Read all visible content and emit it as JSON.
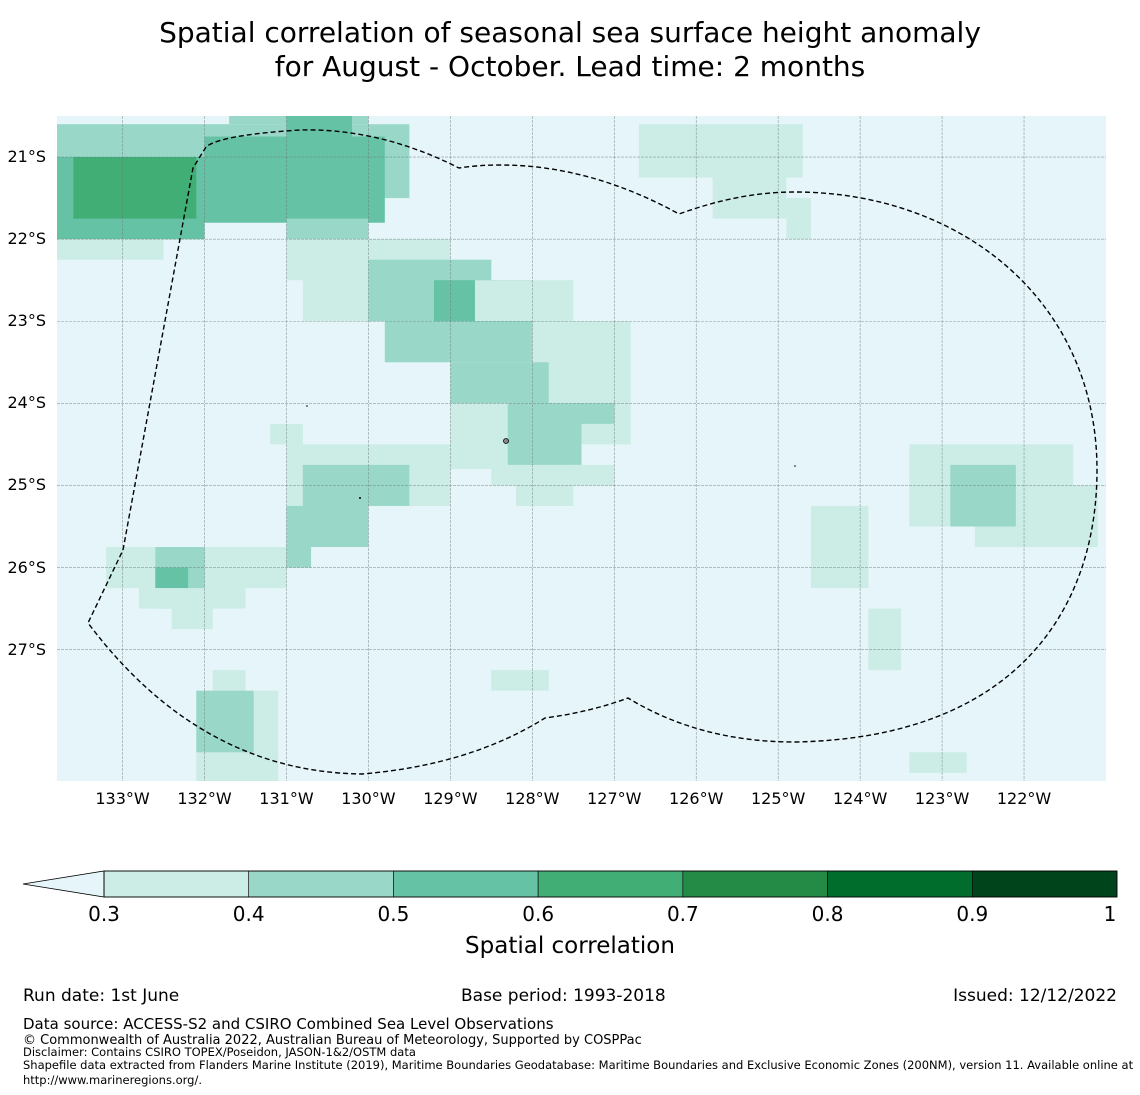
{
  "title": {
    "line1": "Spatial correlation of seasonal sea surface height anomaly",
    "line2": "for August - October. Lead time: 2 months"
  },
  "map": {
    "ocean_color": "#e5f5f9",
    "bounds": {
      "lon_west": -133.8,
      "lon_east": -121.0,
      "lat_north": -20.5,
      "lat_south": -28.6
    },
    "cell_deg": 0.25,
    "lat_ticks": [
      {
        "value": -21,
        "label": "21°S"
      },
      {
        "value": -22,
        "label": "22°S"
      },
      {
        "value": -23,
        "label": "23°S"
      },
      {
        "value": -24,
        "label": "24°S"
      },
      {
        "value": -25,
        "label": "25°S"
      },
      {
        "value": -26,
        "label": "26°S"
      },
      {
        "value": -27,
        "label": "27°S"
      }
    ],
    "lon_ticks": [
      {
        "value": -133,
        "label": "133°W"
      },
      {
        "value": -132,
        "label": "132°W"
      },
      {
        "value": -131,
        "label": "131°W"
      },
      {
        "value": -130,
        "label": "130°W"
      },
      {
        "value": -129,
        "label": "129°W"
      },
      {
        "value": -128,
        "label": "128°W"
      },
      {
        "value": -127,
        "label": "127°W"
      },
      {
        "value": -126,
        "label": "126°W"
      },
      {
        "value": -125,
        "label": "125°W"
      },
      {
        "value": -124,
        "label": "124°W"
      },
      {
        "value": -123,
        "label": "123°W"
      },
      {
        "value": -122,
        "label": "122°W"
      }
    ],
    "correlation_cells": [
      {
        "lon1": -133.8,
        "lon2": -131.0,
        "lat1": -20.6,
        "lat2": -20.75,
        "value": 0.35
      },
      {
        "lon1": -131.7,
        "lon2": -130.0,
        "lat1": -20.5,
        "lat2": -20.6,
        "value": 0.45
      },
      {
        "lon1": -133.8,
        "lon2": -129.5,
        "lat1": -20.6,
        "lat2": -21.5,
        "value": 0.45
      },
      {
        "lon1": -133.8,
        "lon2": -132.0,
        "lat1": -21.0,
        "lat2": -22.0,
        "value": 0.55
      },
      {
        "lon1": -133.6,
        "lon2": -132.1,
        "lat1": -21.0,
        "lat2": -21.75,
        "value": 0.65
      },
      {
        "lon1": -132.0,
        "lon2": -129.8,
        "lat1": -20.75,
        "lat2": -21.8,
        "value": 0.55
      },
      {
        "lon1": -131.0,
        "lon2": -130.2,
        "lat1": -20.5,
        "lat2": -21.0,
        "value": 0.55
      },
      {
        "lon1": -131.0,
        "lon2": -130.0,
        "lat1": -21.75,
        "lat2": -22.0,
        "value": 0.45
      },
      {
        "lon1": -133.8,
        "lon2": -132.5,
        "lat1": -22.0,
        "lat2": -22.25,
        "value": 0.35
      },
      {
        "lon1": -131.0,
        "lon2": -129.0,
        "lat1": -22.0,
        "lat2": -22.5,
        "value": 0.35
      },
      {
        "lon1": -130.8,
        "lon2": -128.5,
        "lat1": -22.5,
        "lat2": -23.0,
        "value": 0.35
      },
      {
        "lon1": -130.0,
        "lon2": -128.5,
        "lat1": -22.25,
        "lat2": -23.0,
        "value": 0.45
      },
      {
        "lon1": -129.2,
        "lon2": -128.0,
        "lat1": -22.5,
        "lat2": -23.25,
        "value": 0.55
      },
      {
        "lon1": -128.7,
        "lon2": -127.5,
        "lat1": -22.5,
        "lat2": -23.0,
        "value": 0.35
      },
      {
        "lon1": -129.8,
        "lon2": -127.8,
        "lat1": -23.0,
        "lat2": -23.5,
        "value": 0.45
      },
      {
        "lon1": -128.0,
        "lon2": -126.8,
        "lat1": -23.0,
        "lat2": -24.5,
        "value": 0.35
      },
      {
        "lon1": -129.0,
        "lon2": -127.8,
        "lat1": -23.5,
        "lat2": -24.0,
        "value": 0.45
      },
      {
        "lon1": -129.0,
        "lon2": -127.6,
        "lat1": -24.0,
        "lat2": -24.8,
        "value": 0.35
      },
      {
        "lon1": -128.3,
        "lon2": -127.4,
        "lat1": -24.0,
        "lat2": -24.75,
        "value": 0.45
      },
      {
        "lon1": -127.5,
        "lon2": -127.0,
        "lat1": -24.0,
        "lat2": -24.25,
        "value": 0.45
      },
      {
        "lon1": -128.5,
        "lon2": -127.0,
        "lat1": -24.75,
        "lat2": -25.0,
        "value": 0.35
      },
      {
        "lon1": -128.2,
        "lon2": -127.5,
        "lat1": -25.0,
        "lat2": -25.25,
        "value": 0.35
      },
      {
        "lon1": -131.0,
        "lon2": -129.0,
        "lat1": -24.5,
        "lat2": -25.25,
        "value": 0.35
      },
      {
        "lon1": -130.8,
        "lon2": -129.5,
        "lat1": -24.75,
        "lat2": -25.25,
        "value": 0.45
      },
      {
        "lon1": -131.0,
        "lon2": -130.0,
        "lat1": -25.25,
        "lat2": -25.75,
        "value": 0.45
      },
      {
        "lon1": -131.0,
        "lon2": -130.7,
        "lat1": -25.5,
        "lat2": -26.0,
        "value": 0.45
      },
      {
        "lon1": -131.2,
        "lon2": -130.8,
        "lat1": -24.25,
        "lat2": -24.5,
        "value": 0.35
      },
      {
        "lon1": -133.2,
        "lon2": -131.0,
        "lat1": -25.75,
        "lat2": -26.25,
        "value": 0.35
      },
      {
        "lon1": -132.6,
        "lon2": -132.0,
        "lat1": -25.75,
        "lat2": -26.5,
        "value": 0.45
      },
      {
        "lon1": -132.6,
        "lon2": -132.2,
        "lat1": -26.0,
        "lat2": -26.25,
        "value": 0.55
      },
      {
        "lon1": -132.8,
        "lon2": -131.5,
        "lat1": -26.25,
        "lat2": -26.5,
        "value": 0.35
      },
      {
        "lon1": -132.4,
        "lon2": -131.9,
        "lat1": -26.5,
        "lat2": -26.75,
        "value": 0.35
      },
      {
        "lon1": -128.5,
        "lon2": -127.8,
        "lat1": -27.25,
        "lat2": -27.5,
        "value": 0.35
      },
      {
        "lon1": -131.9,
        "lon2": -131.5,
        "lat1": -27.25,
        "lat2": -27.5,
        "value": 0.35
      },
      {
        "lon1": -132.1,
        "lon2": -131.1,
        "lat1": -27.5,
        "lat2": -28.6,
        "value": 0.35
      },
      {
        "lon1": -132.1,
        "lon2": -131.4,
        "lat1": -27.5,
        "lat2": -28.25,
        "value": 0.45
      },
      {
        "lon1": -126.7,
        "lon2": -124.7,
        "lat1": -20.6,
        "lat2": -21.25,
        "value": 0.35
      },
      {
        "lon1": -125.8,
        "lon2": -124.9,
        "lat1": -21.0,
        "lat2": -21.75,
        "value": 0.35
      },
      {
        "lon1": -124.9,
        "lon2": -124.6,
        "lat1": -21.5,
        "lat2": -22.0,
        "value": 0.35
      },
      {
        "lon1": -123.4,
        "lon2": -121.4,
        "lat1": -24.5,
        "lat2": -25.5,
        "value": 0.35
      },
      {
        "lon1": -122.6,
        "lon2": -121.1,
        "lat1": -25.0,
        "lat2": -25.75,
        "value": 0.35
      },
      {
        "lon1": -122.9,
        "lon2": -122.1,
        "lat1": -24.75,
        "lat2": -25.5,
        "value": 0.45
      },
      {
        "lon1": -124.6,
        "lon2": -123.9,
        "lat1": -25.25,
        "lat2": -26.25,
        "value": 0.35
      },
      {
        "lon1": -123.9,
        "lon2": -123.5,
        "lat1": -26.5,
        "lat2": -27.25,
        "value": 0.35
      },
      {
        "lon1": -123.4,
        "lon2": -122.7,
        "lat1": -28.25,
        "lat2": -28.5,
        "value": 0.35
      }
    ]
  },
  "colorbar": {
    "ticks": [
      "0.3",
      "0.4",
      "0.5",
      "0.6",
      "0.7",
      "0.8",
      "0.9",
      "1"
    ],
    "colors": [
      "#ccece6",
      "#99d8c9",
      "#66c2a4",
      "#41ae76",
      "#238b45",
      "#006d2c",
      "#00441b"
    ],
    "extend_color": "#e5f5f9",
    "label": "Spatial correlation"
  },
  "footer": {
    "run_date": "Run date: 1st June",
    "base_period": "Base period: 1993-2018",
    "issued": "Issued: 12/12/2022",
    "data_source": "Data source: ACCESS-S2 and CSIRO Combined Sea Level Observations",
    "copyright": "© Commonwealth of Australia 2022, Australian Bureau of Meteorology, Supported by COSPPac",
    "disclaimer": "Disclaimer: Contains CSIRO TOPEX/Poseidon, JASON-1&2/OSTM data",
    "shapefile": "Shapefile data extracted from Flanders Marine Institute (2019), Maritime Boundaries Geodatabase: Maritime Boundaries and Exclusive Economic Zones (200NM), version 11. Available online at http://www.marineregions.org/."
  }
}
